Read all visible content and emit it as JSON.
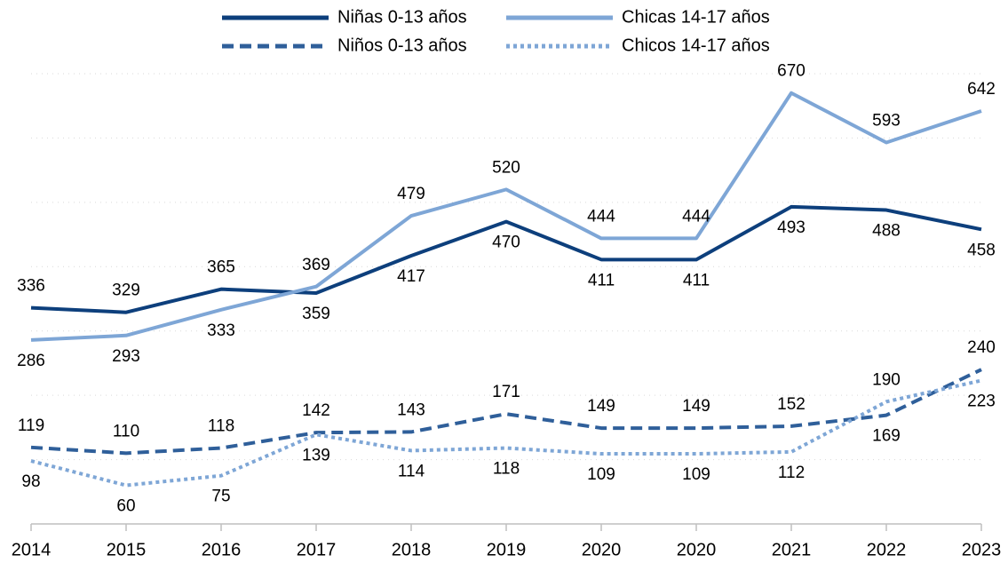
{
  "chart_data": {
    "type": "line",
    "categories": [
      "2014",
      "2015",
      "2016",
      "2017",
      "2018",
      "2019",
      "2020",
      "2020",
      "2021",
      "2022",
      "2023"
    ],
    "series": [
      {
        "name": "Niñas 0-13 años",
        "color": "#0d3f7c",
        "dash": "solid",
        "values": [
          336,
          329,
          365,
          359,
          417,
          470,
          411,
          411,
          493,
          488,
          458
        ]
      },
      {
        "name": "Chicas 14-17 años",
        "color": "#7ea6d6",
        "dash": "solid",
        "values": [
          286,
          293,
          333,
          369,
          479,
          520,
          444,
          444,
          670,
          593,
          642
        ]
      },
      {
        "name": "Niños 0-13 años",
        "color": "#2f5f9a",
        "dash": "dashed",
        "values": [
          119,
          110,
          118,
          142,
          143,
          171,
          149,
          149,
          152,
          169,
          240
        ]
      },
      {
        "name": "Chicos 14-17 años",
        "color": "#7ea6d6",
        "dash": "dotted",
        "values": [
          98,
          60,
          75,
          139,
          114,
          118,
          109,
          109,
          112,
          190,
          223
        ]
      }
    ],
    "ylim": [
      0,
      700
    ],
    "yticks": [
      0,
      100,
      200,
      300,
      400,
      500,
      600,
      700
    ],
    "grid": true,
    "legend": "top"
  }
}
